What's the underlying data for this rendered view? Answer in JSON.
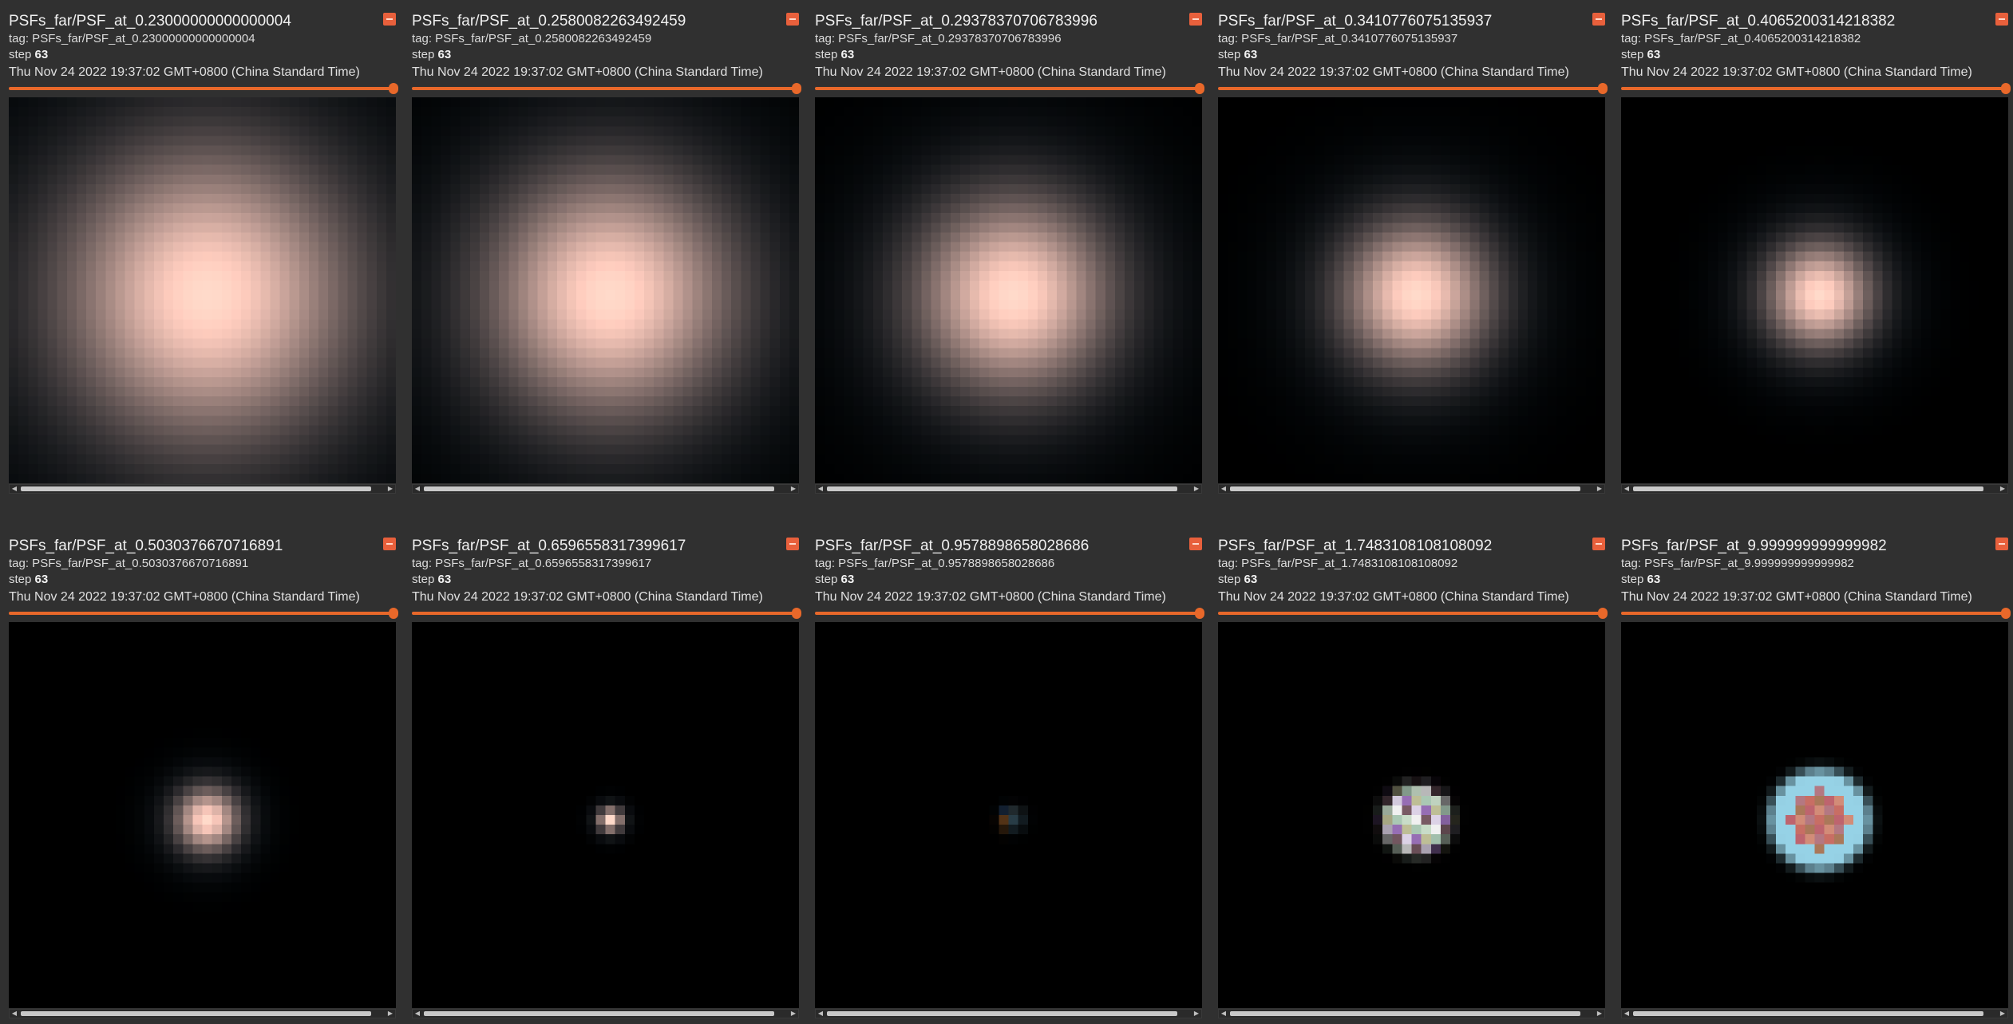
{
  "panels": [
    {
      "title": "PSFs_far/PSF_at_0.23000000000000004",
      "tag": "tag: PSFs_far/PSF_at_0.23000000000000004",
      "step_label": "step",
      "step": "63",
      "time": "Thu Nov 24 2022 19:37:02 GMT+0800 (China Standard Time)",
      "psf": {
        "size": 40,
        "sigma": 7.5,
        "pattern": "gauss"
      }
    },
    {
      "title": "PSFs_far/PSF_at_0.2580082263492459",
      "tag": "tag: PSFs_far/PSF_at_0.2580082263492459",
      "step_label": "step",
      "step": "63",
      "time": "Thu Nov 24 2022 19:37:02 GMT+0800 (China Standard Time)",
      "psf": {
        "size": 40,
        "sigma": 6.3,
        "pattern": "gauss"
      }
    },
    {
      "title": "PSFs_far/PSF_at_0.29378370706783996",
      "tag": "tag: PSFs_far/PSF_at_0.29378370706783996",
      "step_label": "step",
      "step": "63",
      "time": "Thu Nov 24 2022 19:37:02 GMT+0800 (China Standard Time)",
      "psf": {
        "size": 40,
        "sigma": 5.0,
        "pattern": "gauss"
      }
    },
    {
      "title": "PSFs_far/PSF_at_0.3410776075135937",
      "tag": "tag: PSFs_far/PSF_at_0.3410776075135937",
      "step_label": "step",
      "step": "63",
      "time": "Thu Nov 24 2022 19:37:02 GMT+0800 (China Standard Time)",
      "psf": {
        "size": 40,
        "sigma": 3.8,
        "pattern": "gauss"
      }
    },
    {
      "title": "PSFs_far/PSF_at_0.4065200314218382",
      "tag": "tag: PSFs_far/PSF_at_0.4065200314218382",
      "step_label": "step",
      "step": "63",
      "time": "Thu Nov 24 2022 19:37:02 GMT+0800 (China Standard Time)",
      "psf": {
        "size": 40,
        "sigma": 2.7,
        "pattern": "gauss"
      }
    },
    {
      "title": "PSFs_far/PSF_at_0.5030376670716891",
      "tag": "tag: PSFs_far/PSF_at_0.5030376670716891",
      "step_label": "step",
      "step": "63",
      "time": "Thu Nov 24 2022 19:37:02 GMT+0800 (China Standard Time)",
      "psf": {
        "size": 40,
        "sigma": 1.6,
        "pattern": "gauss"
      }
    },
    {
      "title": "PSFs_far/PSF_at_0.6596558317399617",
      "tag": "tag: PSFs_far/PSF_at_0.6596558317399617",
      "step_label": "step",
      "step": "63",
      "time": "Thu Nov 24 2022 19:37:02 GMT+0800 (China Standard Time)",
      "psf": {
        "size": 40,
        "sigma": 0.6,
        "pattern": "gauss"
      }
    },
    {
      "title": "PSFs_far/PSF_at_0.9578898658028686",
      "tag": "tag: PSFs_far/PSF_at_0.9578898658028686",
      "step_label": "step",
      "step": "63",
      "time": "Thu Nov 24 2022 19:37:02 GMT+0800 (China Standard Time)",
      "psf": {
        "size": 40,
        "sigma": 0.8,
        "pattern": "quad"
      }
    },
    {
      "title": "PSFs_far/PSF_at_1.7483108108108092",
      "tag": "tag: PSFs_far/PSF_at_1.7483108108108092",
      "step_label": "step",
      "step": "63",
      "time": "Thu Nov 24 2022 19:37:02 GMT+0800 (China Standard Time)",
      "psf": {
        "size": 40,
        "sigma": 2.6,
        "pattern": "disk"
      }
    },
    {
      "title": "PSFs_far/PSF_at_9.999999999999982",
      "tag": "tag: PSFs_far/PSF_at_9.999999999999982",
      "step_label": "step",
      "step": "63",
      "time": "Thu Nov 24 2022 19:37:02 GMT+0800 (China Standard Time)",
      "psf": {
        "size": 40,
        "sigma": 4.4,
        "pattern": "ring"
      }
    }
  ],
  "colors": {
    "background": "#303030",
    "accent": "#e8682a",
    "badge": "#e8603c",
    "psf_warm": "#ffb28e",
    "psf_cool": "#1a2a36"
  },
  "icons": {
    "badge": "expand-icon",
    "scroll_left": "chevron-left-icon",
    "scroll_right": "chevron-right-icon"
  }
}
